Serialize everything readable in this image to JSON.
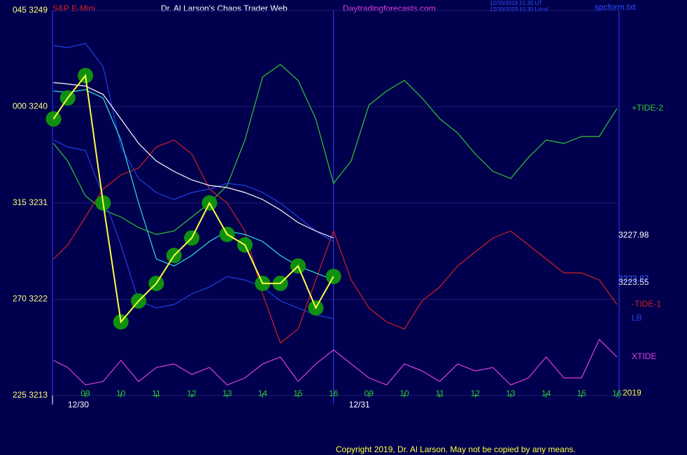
{
  "header": {
    "symbol": "S&P E-Mini",
    "title": "Dr. Al Larson's Chaos Trader Web",
    "site": "Daytradingforecasts.com",
    "time_ut": "12/30/2019 21:30 UT",
    "time_local": "12/30/2019 15:30 Local",
    "file": "spcform.txt"
  },
  "footer": {
    "copyright": "Copyright 2019, Dr. Al Larson. May not be copied by any means."
  },
  "chart_data": {
    "type": "line",
    "x": [
      8.1,
      8.5,
      9,
      9.5,
      10,
      10.5,
      11,
      11.5,
      12,
      12.5,
      13,
      13.5,
      14,
      14.5,
      15,
      15.5,
      16,
      16.5,
      17,
      17.5,
      18,
      18.5,
      19,
      19.5,
      20,
      20.5,
      21,
      21.5,
      22,
      22.5,
      23,
      23.5,
      24
    ],
    "xlim": [
      8.07,
      24.06
    ],
    "xticks": [
      {
        "value": 9,
        "label": "09"
      },
      10,
      11,
      12,
      13,
      14,
      15,
      16,
      {
        "value": 17,
        "label": "09"
      },
      {
        "value": 18,
        "label": "10"
      },
      {
        "value": 19,
        "label": "11"
      },
      {
        "value": 20,
        "label": "12"
      },
      {
        "value": 21,
        "label": "13"
      },
      {
        "value": 22,
        "label": "14"
      },
      {
        "value": 23,
        "label": "15"
      },
      {
        "value": 24,
        "label": "16"
      }
    ],
    "dates": [
      {
        "value": 8.07,
        "label": "12/30"
      },
      {
        "value": 16,
        "label": "12/31"
      }
    ],
    "ylim": [
      3213,
      3249
    ],
    "yticks": [
      {
        "value": 3249,
        "label": "045  3249"
      },
      {
        "value": 3240,
        "label": "000  3240"
      },
      {
        "value": 3231,
        "label": "315  3231"
      },
      {
        "value": 3222,
        "label": "270  3222"
      },
      {
        "value": 3213,
        "label": "225  3213"
      }
    ],
    "grid": true,
    "series": [
      {
        "name": "+TIDE-2",
        "color": "#30c830",
        "values": [
          3236.57,
          3234.93,
          3231.66,
          3230.35,
          3229.69,
          3228.71,
          3228.06,
          3228.38,
          3229.69,
          3231.0,
          3232.64,
          3236.89,
          3242.78,
          3243.96,
          3242.46,
          3238.86,
          3232.84,
          3234.93,
          3240.16,
          3241.47,
          3242.46,
          3240.82,
          3238.86,
          3237.55,
          3235.58,
          3233.95,
          3233.29,
          3235.26,
          3236.89,
          3236.57,
          3237.22,
          3237.22,
          3239.84
        ]
      },
      {
        "name": "-TIDE-1",
        "color": "#d02020",
        "values": [
          3225.77,
          3227.08,
          3229.69,
          3232.31,
          3233.62,
          3234.27,
          3236.24,
          3236.89,
          3235.58,
          3232.31,
          3231.0,
          3228.38,
          3222.49,
          3217.91,
          3219.22,
          3223.8,
          3228.38,
          3223.8,
          3221.19,
          3219.88,
          3219.22,
          3221.84,
          3223.15,
          3225.11,
          3226.42,
          3227.73,
          3228.38,
          3227.08,
          3225.77,
          3224.46,
          3224.46,
          3223.8,
          3221.51
        ]
      },
      {
        "name": "XTIDE",
        "color": "#e040e0",
        "values": [
          3216.28,
          3215.62,
          3213.99,
          3214.31,
          3216.28,
          3214.31,
          3215.62,
          3215.95,
          3214.97,
          3215.62,
          3213.99,
          3214.64,
          3215.95,
          3216.6,
          3214.31,
          3215.95,
          3217.26,
          3215.95,
          3214.64,
          3213.99,
          3215.95,
          3215.3,
          3214.31,
          3215.95,
          3215.3,
          3215.62,
          3213.99,
          3214.64,
          3216.6,
          3214.64,
          3214.64,
          3218.24,
          3216.6
        ]
      },
      {
        "name": "LB",
        "color": "#2040e0",
        "values": [
          3236.89,
          3236.24,
          3235.91,
          3231.66,
          3227.08,
          3221.84,
          3221.19,
          3221.51,
          3222.49,
          3223.15,
          3224.13,
          3223.8,
          3223.15,
          3221.84,
          3221.19,
          3220.53,
          3220.2,
          null,
          null,
          null,
          null,
          null,
          null,
          null,
          null,
          null,
          null,
          null,
          null,
          null,
          null,
          null,
          null
        ]
      },
      {
        "color": "#2040e0",
        "values": [
          3245.73,
          3245.53,
          3245.92,
          3243.76,
          3236.24,
          3233.29,
          3231.98,
          3231.33,
          3231.98,
          3232.31,
          3232.84,
          3232.64,
          3231.98,
          3231.0,
          3229.69,
          3228.38,
          3227.4,
          null,
          null,
          null,
          null,
          null,
          null,
          null,
          null,
          null,
          null,
          null,
          null,
          null,
          null,
          null,
          null
        ]
      },
      {
        "color": "#ffffff",
        "values": [
          3242.26,
          3242.13,
          3241.93,
          3241.15,
          3238.86,
          3236.57,
          3234.93,
          3233.95,
          3233.16,
          3232.64,
          3232.44,
          3231.98,
          3231.33,
          3230.35,
          3229.17,
          3228.38,
          3227.73,
          null,
          null,
          null,
          null,
          null,
          null,
          null,
          null,
          null,
          null,
          null,
          null,
          null,
          null,
          null,
          null
        ]
      },
      {
        "color": "#30e0e0",
        "values": [
          3241.47,
          3241.34,
          3241.6,
          3240.82,
          3236.89,
          3231.0,
          3225.77,
          3225.11,
          3226.09,
          3227.4,
          3228.38,
          3228.06,
          3227.4,
          3226.09,
          3225.11,
          3224.46,
          3223.8,
          null,
          null,
          null,
          null,
          null,
          null,
          null,
          null,
          null,
          null,
          null,
          null,
          null,
          null,
          null,
          null
        ]
      },
      {
        "color": "#ffff40",
        "marker_color": "#109010",
        "values": [
          3238.86,
          3240.82,
          3242.91,
          3231.0,
          3219.88,
          3221.84,
          3223.48,
          3226.09,
          3227.73,
          3231.0,
          3228.06,
          3227.08,
          3223.48,
          3223.48,
          3225.11,
          3221.19,
          3224.13,
          null,
          null,
          null,
          null,
          null,
          null,
          null,
          null,
          null,
          null,
          null,
          null,
          null,
          null,
          null,
          null
        ]
      }
    ],
    "annotations": [
      {
        "value": 3227.98,
        "label": "3227.98",
        "color": "#ffffff"
      },
      {
        "value": 3223.87,
        "label": "3223.87",
        "color": "#4060ff"
      },
      {
        "value": 3223.55,
        "label": "3223.55",
        "color": "#e0e0ff"
      }
    ],
    "year_label": "2019"
  }
}
